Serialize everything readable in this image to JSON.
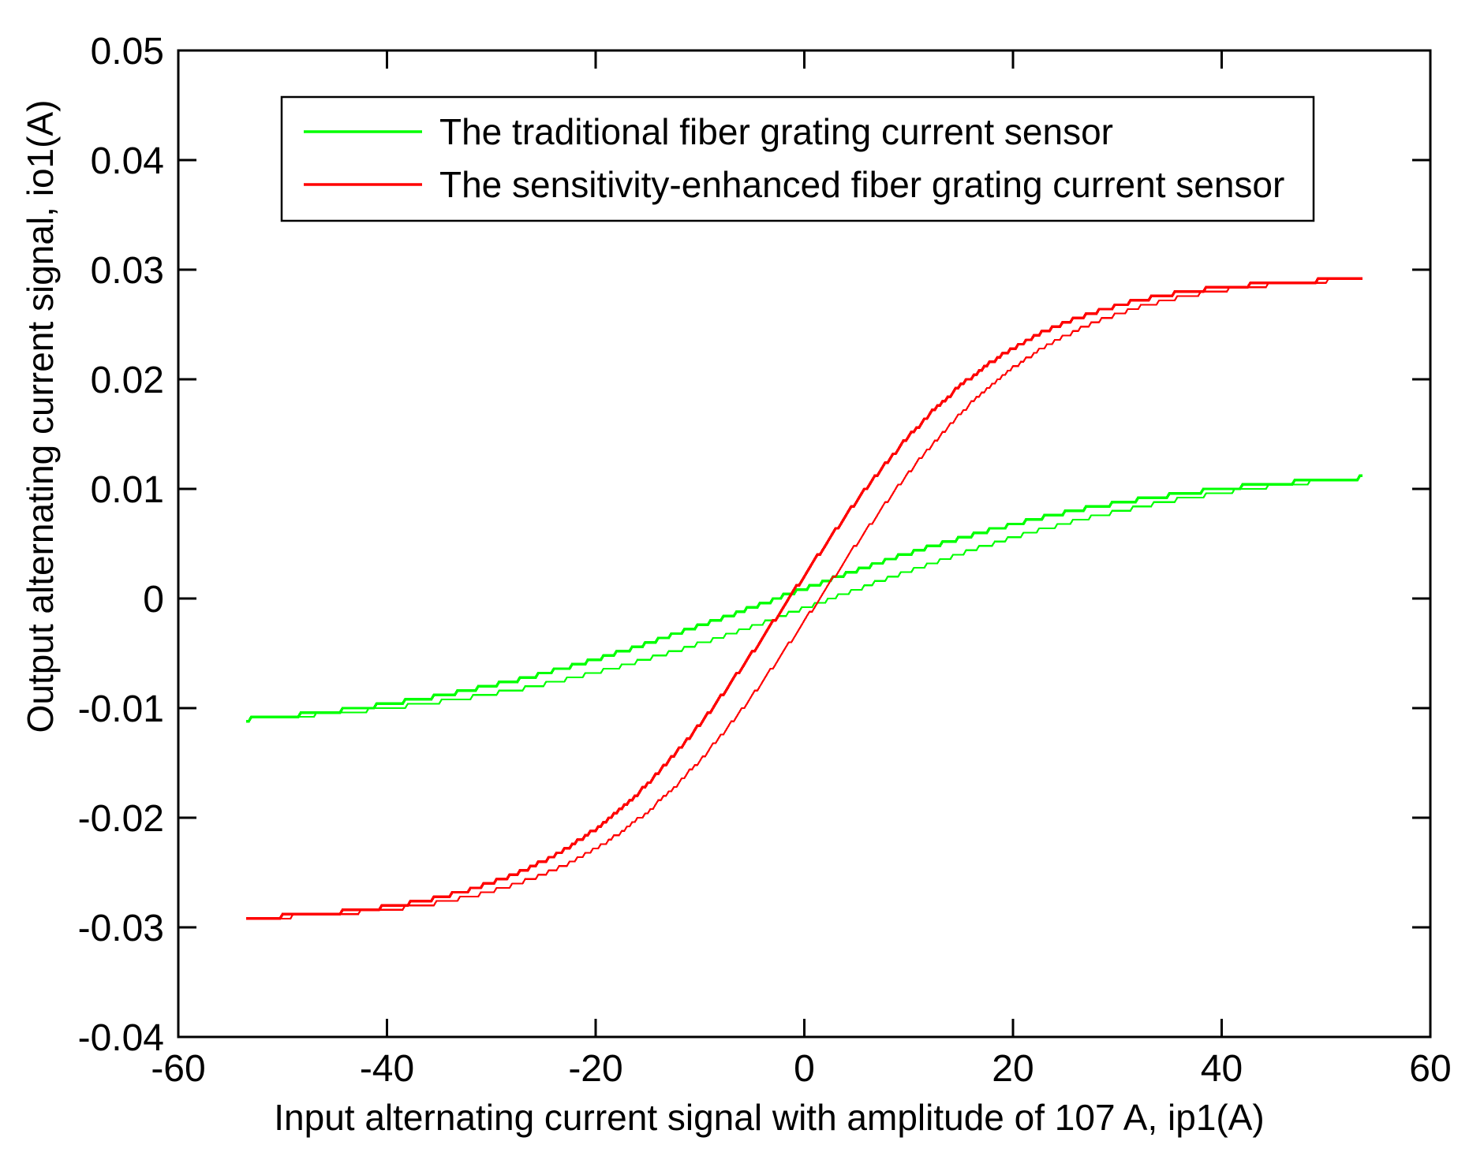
{
  "figure": {
    "background": "#ffffff",
    "text_color": "#000000"
  },
  "chart_data": {
    "type": "line",
    "subtype": "hysteresis-loops",
    "title": "",
    "xlabel": "Input alternating current signal with amplitude of 107 A, ip1(A)",
    "ylabel": "Output alternating current signal, io1(A)",
    "xlim": [
      -60,
      60
    ],
    "ylim": [
      -0.04,
      0.05
    ],
    "xticks": {
      "values": [
        -60,
        -40,
        -20,
        0,
        20,
        40,
        60
      ],
      "labels": [
        "-60",
        "-40",
        "-20",
        "0",
        "20",
        "40",
        "60"
      ]
    },
    "yticks": {
      "values": [
        0.05,
        0.04,
        0.03,
        0.02,
        0.01,
        0,
        -0.01,
        -0.02,
        -0.03,
        -0.04
      ],
      "labels": [
        "0.05",
        "0.04",
        "0.03",
        "0.02",
        "0.01",
        "0",
        "-0.01",
        "-0.02",
        "-0.03",
        "-0.04"
      ]
    },
    "grid": false,
    "legend": {
      "position": "upper-left-inside",
      "border": true
    },
    "series": [
      {
        "name": "The traditional fiber grating current sensor",
        "color": "#00ff00",
        "saturation_output": 0.011,
        "model": {
          "amplitude": 0.0122,
          "steepness": 0.028,
          "hysteresis_offset": 3.2,
          "quantization_step": 0.0004,
          "x_min": -53.5,
          "x_max": 53.5
        },
        "sample_x": [
          -53.5,
          -45,
          -35,
          -25,
          -15,
          -5,
          0,
          5,
          15,
          25,
          35,
          45,
          53.5
        ],
        "ascending_y": [
          -0.011,
          -0.0105,
          -0.0094,
          -0.0078,
          -0.0055,
          -0.0026,
          -0.0009,
          0.0008,
          0.0041,
          0.0068,
          0.0089,
          0.0103,
          0.011
        ],
        "descending_y": [
          -0.011,
          -0.0103,
          -0.0089,
          -0.0068,
          -0.0041,
          -0.0008,
          0.0009,
          0.0026,
          0.0055,
          0.0078,
          0.0094,
          0.0105,
          0.011
        ]
      },
      {
        "name": "The sensitivity-enhanced fiber grating current sensor",
        "color": "#ff0000",
        "saturation_output": 0.029,
        "model": {
          "amplitude": 0.0295,
          "steepness": 0.048,
          "hysteresis_offset": 1.5,
          "quantization_step": 0.0004,
          "x_min": -53.5,
          "x_max": 53.5
        },
        "sample_x": [
          -53.5,
          -45,
          -35,
          -25,
          -15,
          -5,
          0,
          5,
          15,
          25,
          35,
          45,
          53.5
        ],
        "ascending_y": [
          -0.0292,
          -0.0288,
          -0.0277,
          -0.0252,
          -0.0194,
          -0.0089,
          -0.0021,
          0.005,
          0.0169,
          0.024,
          0.0273,
          0.0287,
          0.0292
        ],
        "descending_y": [
          -0.0292,
          -0.0287,
          -0.0273,
          -0.024,
          -0.0169,
          -0.005,
          0.0021,
          0.0089,
          0.0194,
          0.0252,
          0.0277,
          0.0288,
          0.0292
        ]
      }
    ]
  }
}
